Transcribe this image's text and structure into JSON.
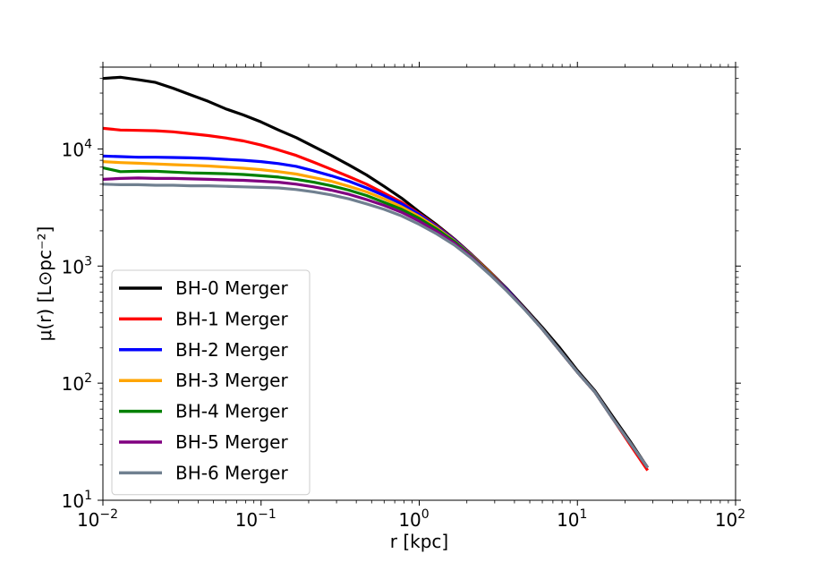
{
  "chart_data": {
    "type": "line",
    "title": "",
    "xlabel": "r [kpc]",
    "ylabel": "μ(r) [L⊙pc⁻²]",
    "xscale": "log",
    "yscale": "log",
    "xlim": [
      0.01,
      100
    ],
    "ylim": [
      10,
      50000
    ],
    "grid": false,
    "legend_position": "lower-left",
    "x_ticks": [
      {
        "value": 0.01,
        "base": "10",
        "exp": "−2"
      },
      {
        "value": 0.1,
        "base": "10",
        "exp": "−1"
      },
      {
        "value": 1,
        "base": "10",
        "exp": "0"
      },
      {
        "value": 10,
        "base": "10",
        "exp": "1"
      },
      {
        "value": 100,
        "base": "10",
        "exp": "2"
      }
    ],
    "y_ticks": [
      {
        "value": 10,
        "base": "10",
        "exp": "1"
      },
      {
        "value": 100,
        "base": "10",
        "exp": "2"
      },
      {
        "value": 1000,
        "base": "10",
        "exp": "3"
      },
      {
        "value": 10000,
        "base": "10",
        "exp": "4"
      }
    ],
    "x": [
      0.01,
      0.0129,
      0.0167,
      0.0215,
      0.0278,
      0.0359,
      0.0464,
      0.0599,
      0.0774,
      0.1,
      0.129,
      0.167,
      0.215,
      0.278,
      0.359,
      0.464,
      0.599,
      0.774,
      1.0,
      1.29,
      1.67,
      2.15,
      2.78,
      3.59,
      4.64,
      5.99,
      7.74,
      10.0,
      12.9,
      16.7,
      21.5,
      27.8
    ],
    "series": [
      {
        "name": "BH-0 Merger",
        "color": "#000000",
        "values": [
          40000,
          41000,
          39000,
          37000,
          33000,
          29000,
          25500,
          22000,
          19500,
          17000,
          14500,
          12500,
          10500,
          8800,
          7300,
          6000,
          4800,
          3800,
          2900,
          2250,
          1700,
          1250,
          900,
          640,
          440,
          300,
          200,
          128,
          86,
          52,
          32,
          19
        ]
      },
      {
        "name": "BH-1 Merger",
        "color": "#ff0000",
        "values": [
          15000,
          14500,
          14400,
          14300,
          14000,
          13500,
          13000,
          12400,
          11700,
          10800,
          9800,
          8800,
          7700,
          6700,
          5800,
          5000,
          4200,
          3500,
          2800,
          2200,
          1680,
          1240,
          890,
          630,
          430,
          290,
          190,
          124,
          84,
          50,
          30,
          18
        ]
      },
      {
        "name": "BH-2 Merger",
        "color": "#0000ff",
        "values": [
          8700,
          8600,
          8500,
          8500,
          8450,
          8400,
          8300,
          8150,
          8000,
          7800,
          7500,
          7100,
          6500,
          5900,
          5300,
          4650,
          4000,
          3400,
          2750,
          2170,
          1670,
          1230,
          880,
          630,
          430,
          290,
          190,
          124,
          84,
          50,
          31,
          19
        ]
      },
      {
        "name": "BH-3 Merger",
        "color": "#ffa500",
        "values": [
          7800,
          7650,
          7550,
          7450,
          7350,
          7250,
          7150,
          7000,
          6850,
          6650,
          6400,
          6100,
          5700,
          5300,
          4800,
          4300,
          3750,
          3200,
          2650,
          2120,
          1640,
          1220,
          880,
          620,
          430,
          290,
          190,
          124,
          84,
          50,
          31,
          19
        ]
      },
      {
        "name": "BH-4 Merger",
        "color": "#008000",
        "values": [
          6900,
          6400,
          6450,
          6450,
          6350,
          6250,
          6200,
          6150,
          6050,
          5900,
          5750,
          5500,
          5200,
          4850,
          4450,
          4000,
          3500,
          3050,
          2550,
          2070,
          1620,
          1210,
          870,
          620,
          430,
          290,
          190,
          124,
          84,
          50,
          31,
          19
        ]
      },
      {
        "name": "BH-5 Merger",
        "color": "#800080",
        "values": [
          5500,
          5600,
          5650,
          5600,
          5600,
          5550,
          5500,
          5450,
          5400,
          5300,
          5200,
          5000,
          4750,
          4450,
          4100,
          3700,
          3300,
          2880,
          2420,
          1980,
          1570,
          1190,
          860,
          620,
          430,
          290,
          190,
          124,
          84,
          50,
          31,
          19
        ]
      },
      {
        "name": "BH-6 Merger",
        "color": "#708090",
        "values": [
          5000,
          4950,
          4950,
          4900,
          4900,
          4850,
          4850,
          4800,
          4750,
          4700,
          4650,
          4500,
          4300,
          4050,
          3750,
          3400,
          3050,
          2680,
          2270,
          1880,
          1510,
          1160,
          850,
          610,
          425,
          290,
          190,
          124,
          84,
          50,
          31,
          19
        ]
      }
    ]
  }
}
